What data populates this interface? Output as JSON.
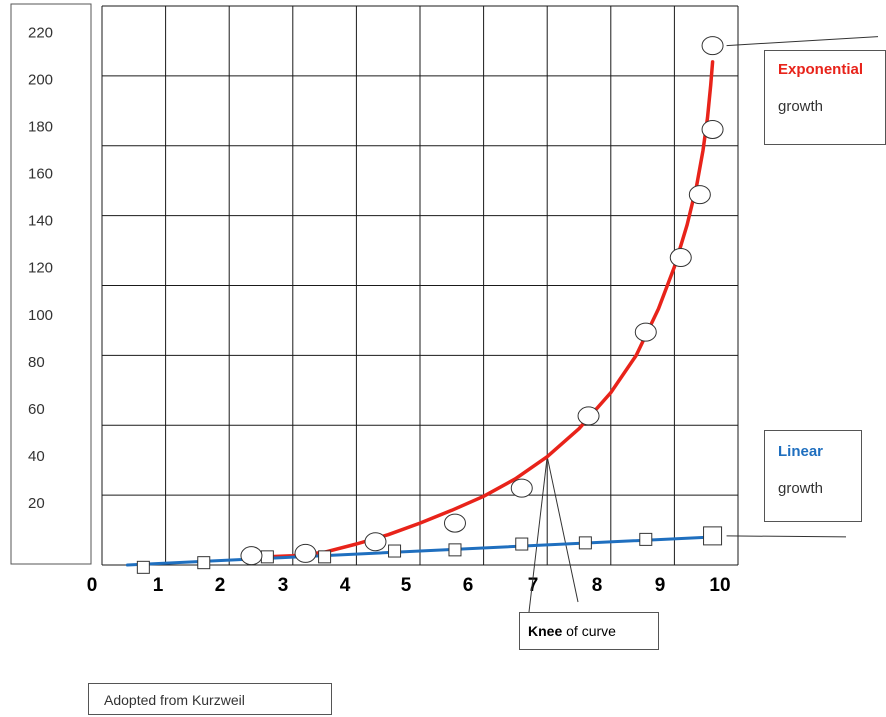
{
  "chart_data": {
    "type": "line",
    "title": "",
    "xlabel": "",
    "ylabel": "",
    "xlim": [
      0,
      10
    ],
    "ylim": [
      0,
      240
    ],
    "x_ticks": [
      "0",
      "1",
      "2",
      "3",
      "4",
      "5",
      "6",
      "7",
      "8",
      "9",
      "10"
    ],
    "y_ticks": [
      "20",
      "40",
      "60",
      "80",
      "100",
      "120",
      "140",
      "160",
      "180",
      "200",
      "220"
    ],
    "grid": true,
    "series": [
      {
        "name": "Exponential",
        "color": "#e8231a",
        "marker": "ellipse",
        "curve": [
          [
            2.3,
            4
          ],
          [
            2.6,
            3.5
          ],
          [
            3.0,
            4
          ],
          [
            3.5,
            5.5
          ],
          [
            4.0,
            9
          ],
          [
            4.5,
            13
          ],
          [
            5.0,
            18
          ],
          [
            5.5,
            23.5
          ],
          [
            6.0,
            29.5
          ],
          [
            6.5,
            37
          ],
          [
            7.0,
            46.5
          ],
          [
            7.5,
            58.5
          ],
          [
            8.0,
            74
          ],
          [
            8.4,
            90
          ],
          [
            8.75,
            110
          ],
          [
            9.0,
            128
          ],
          [
            9.2,
            146
          ],
          [
            9.35,
            163
          ],
          [
            9.45,
            178
          ],
          [
            9.52,
            192
          ],
          [
            9.57,
            206
          ],
          [
            9.6,
            216
          ]
        ],
        "points": [
          [
            2.35,
            4
          ],
          [
            3.2,
            5
          ],
          [
            4.3,
            10
          ],
          [
            5.55,
            18
          ],
          [
            6.6,
            33
          ],
          [
            7.65,
            64
          ],
          [
            8.55,
            100
          ],
          [
            9.1,
            132
          ],
          [
            9.4,
            159
          ],
          [
            9.6,
            187
          ],
          [
            9.6,
            223
          ]
        ]
      },
      {
        "name": "Linear",
        "color": "#1f6fbf",
        "marker": "square",
        "curve": [
          [
            0.4,
            0
          ],
          [
            9.6,
            12
          ]
        ],
        "points": [
          [
            0.65,
            -1
          ],
          [
            1.6,
            1
          ],
          [
            2.6,
            3.5
          ],
          [
            3.5,
            3.5
          ],
          [
            4.6,
            6
          ],
          [
            5.55,
            6.5
          ],
          [
            6.6,
            9
          ],
          [
            7.6,
            9.5
          ],
          [
            8.55,
            11
          ],
          [
            9.6,
            12.5
          ]
        ]
      }
    ],
    "legend": [
      {
        "title": "Exponential",
        "subtitle": "growth",
        "color": "#e8231a"
      },
      {
        "title": "Linear",
        "subtitle": "growth",
        "color": "#1f6fbf"
      }
    ],
    "annotations": {
      "knee_bold": "Knee",
      "knee_rest": " of curve",
      "knee_point": [
        7.0,
        46.5
      ],
      "source": "Adopted from Kurzweil"
    }
  }
}
